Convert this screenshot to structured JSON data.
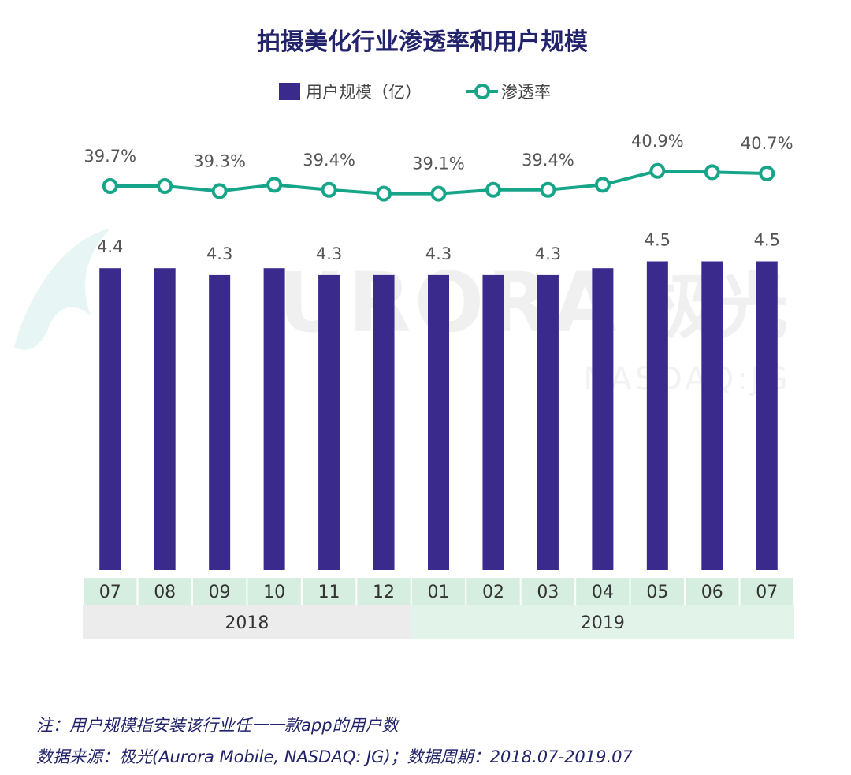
{
  "chart_data": {
    "type": "bar+line",
    "title": "拍摄美化行业渗透率和用户规模",
    "legend": {
      "bar_label": "用户规模（亿）",
      "line_label": "渗透率",
      "placement": "top-center"
    },
    "categories": [
      "07",
      "08",
      "09",
      "10",
      "11",
      "12",
      "01",
      "02",
      "03",
      "04",
      "05",
      "06",
      "07"
    ],
    "years": [
      {
        "label": "2018",
        "count": 6
      },
      {
        "label": "2019",
        "count": 7
      }
    ],
    "series": [
      {
        "name": "用户规模（亿）",
        "type": "bar",
        "values": [
          4.4,
          4.4,
          4.3,
          4.4,
          4.3,
          4.3,
          4.3,
          4.3,
          4.3,
          4.4,
          4.5,
          4.5,
          4.5
        ],
        "labels": [
          "4.4",
          "",
          "4.3",
          "",
          "4.3",
          "",
          "4.3",
          "",
          "4.3",
          "",
          "4.5",
          "",
          "4.5"
        ]
      },
      {
        "name": "渗透率",
        "type": "line",
        "values": [
          39.7,
          39.7,
          39.3,
          39.8,
          39.4,
          39.1,
          39.1,
          39.4,
          39.4,
          39.8,
          40.9,
          40.8,
          40.7
        ],
        "labels": [
          "39.7%",
          "",
          "39.3%",
          "",
          "39.4%",
          "",
          "39.1%",
          "",
          "39.4%",
          "",
          "40.9%",
          "",
          "40.7%"
        ]
      }
    ],
    "watermark": {
      "text": "URORA",
      "logo_text": "极光",
      "ticker": "NASDAQ:JG"
    },
    "colors": {
      "bar": "#3a2a8c",
      "line": "#17a589",
      "title": "#22236a",
      "label": "#555555",
      "month_row": "#d5eedf",
      "year_2018": "#ececec",
      "year_2019": "#e2f4ea"
    }
  },
  "notes": {
    "note1": "注：用户规模指安装该行业任一一款app的用户数",
    "note2": "数据来源：极光(Aurora Mobile, NASDAQ: JG)；数据周期：2018.07-2019.07"
  }
}
